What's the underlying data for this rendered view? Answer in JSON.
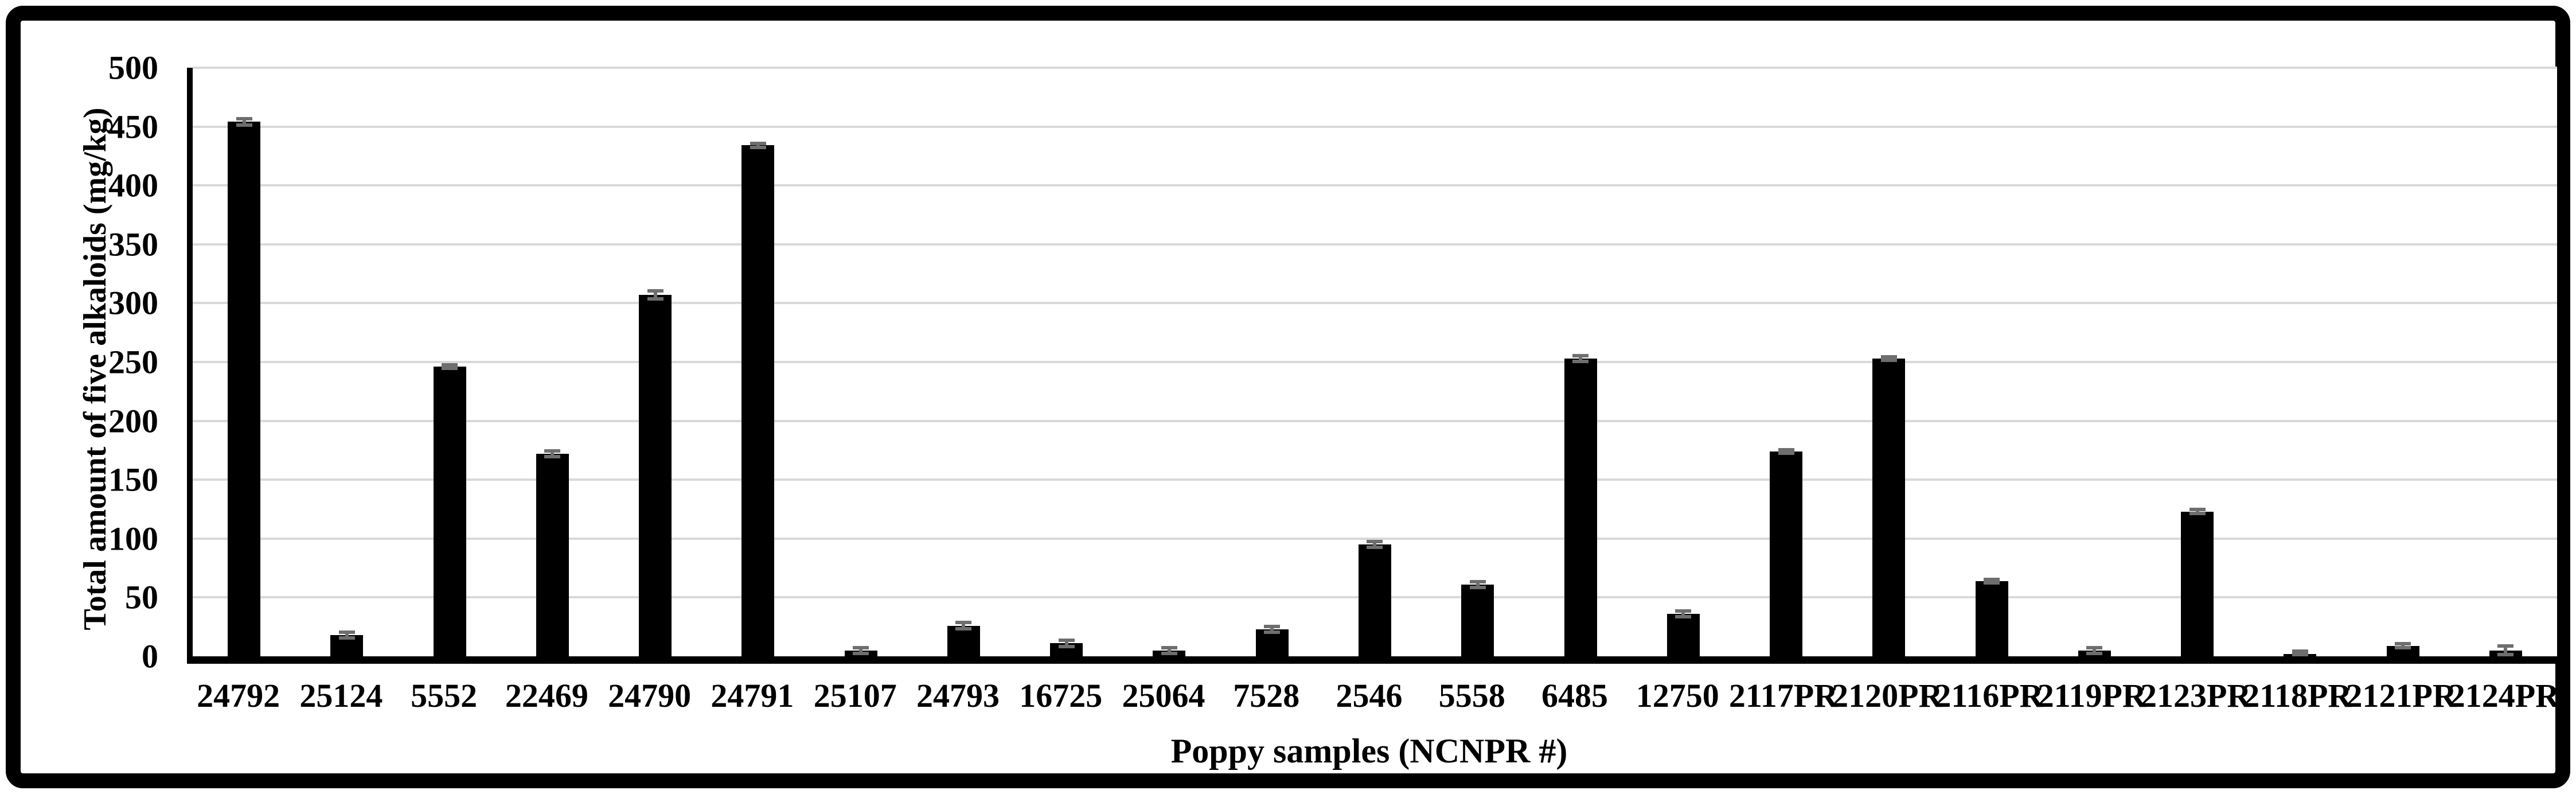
{
  "figure": {
    "background_color": "#ffffff",
    "border_color": "#000000",
    "plot_background": "#ffffff"
  },
  "chart_data": {
    "type": "bar",
    "title": "",
    "xlabel": "Poppy samples (NCNPR #)",
    "ylabel": "Total amount of five alkaloids (mg/kg)",
    "ylim": [
      0,
      500
    ],
    "ytick_step": 50,
    "yticks": [
      0,
      50,
      100,
      150,
      200,
      250,
      300,
      350,
      400,
      450,
      500
    ],
    "grid": "horizontal-gridlines-on",
    "legend": "none",
    "bar_color": "#000000",
    "error_bar_color": "#6e6e6e",
    "gridline_color": "#d9d9d9",
    "categories": [
      "24792",
      "25124",
      "5552",
      "22469",
      "24790",
      "24791",
      "25107",
      "24793",
      "16725",
      "25064",
      "7528",
      "2546",
      "5558",
      "6485",
      "12750",
      "2117PR",
      "2120PR",
      "2116PR",
      "2119PR",
      "2123PR",
      "2118PR",
      "2121PR",
      "2124PR"
    ],
    "values": [
      454,
      18,
      246,
      172,
      307,
      434,
      5,
      26,
      11,
      5,
      23,
      95,
      61,
      253,
      36,
      174,
      253,
      64,
      5,
      123,
      2,
      9,
      5
    ],
    "errors": [
      4,
      4,
      3,
      4,
      5,
      3,
      4,
      4,
      4,
      4,
      4,
      4,
      4,
      4,
      4,
      3,
      3,
      3,
      4,
      3,
      4,
      3,
      5
    ]
  }
}
